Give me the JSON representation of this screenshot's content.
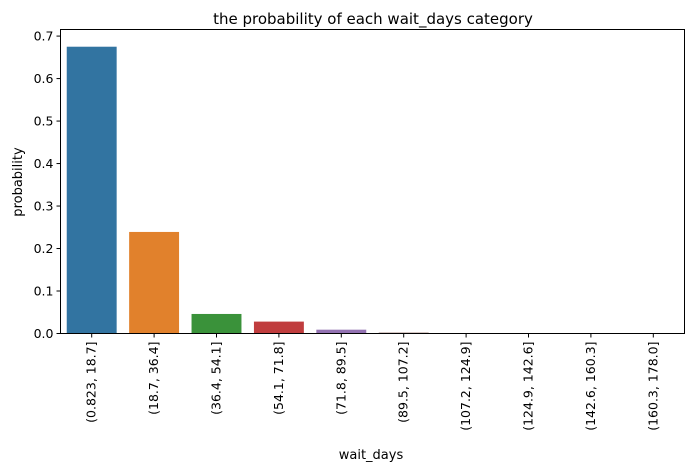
{
  "chart_data": {
    "type": "bar",
    "title": "the probability of each wait_days category",
    "xlabel": "wait_days",
    "ylabel": "probability",
    "ylim": [
      0,
      0.7155
    ],
    "yticks": [
      "0.0",
      "0.1",
      "0.2",
      "0.3",
      "0.4",
      "0.5",
      "0.6",
      "0.7"
    ],
    "categories": [
      "(0.823, 18.7]",
      "(18.7, 36.4]",
      "(36.4, 54.1]",
      "(54.1, 71.8]",
      "(71.8, 89.5]",
      "(89.5, 107.2]",
      "(107.2, 124.9]",
      "(124.9, 142.6]",
      "(142.6, 160.3]",
      "(160.3, 178.0]"
    ],
    "values": [
      0.675,
      0.239,
      0.046,
      0.028,
      0.009,
      0.002,
      0.001,
      0.001,
      0.0,
      0.001
    ],
    "colors": [
      "#3274a1",
      "#e1812c",
      "#3a923a",
      "#c03d3e",
      "#9372b2",
      "#845b53",
      "#d684bd",
      "#7f7f7f",
      "#a9aa35",
      "#2eb4c8"
    ],
    "grid": false,
    "legend": "none"
  }
}
